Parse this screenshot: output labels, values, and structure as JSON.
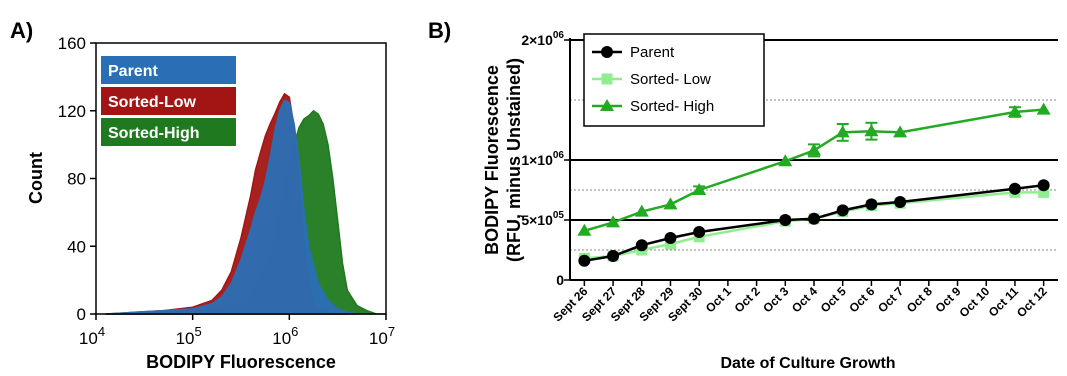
{
  "panel_labels": {
    "a": "A)",
    "b": "B)"
  },
  "chart_data": [
    {
      "type": "area",
      "panel": "A)",
      "xlabel": "BODIPY Fluorescence",
      "ylabel": "Count",
      "x_scale": "log",
      "xlim": [
        10000,
        10000000
      ],
      "ylim": [
        0,
        160
      ],
      "yticks": [
        "0",
        "40",
        "80",
        "120",
        "160"
      ],
      "xticks": [
        {
          "base": "10",
          "exp": "4"
        },
        {
          "base": "10",
          "exp": "5"
        },
        {
          "base": "10",
          "exp": "6"
        },
        {
          "base": "10",
          "exp": "7"
        }
      ],
      "legend_position": "top-left",
      "series": [
        {
          "name": "Sorted-High",
          "color": "#1f7a1f",
          "log_x": [
            4.1,
            4.4,
            4.7,
            5.0,
            5.2,
            5.4,
            5.5,
            5.6,
            5.7,
            5.8,
            5.85,
            5.9,
            5.95,
            6.0,
            6.05,
            6.1,
            6.15,
            6.2,
            6.25,
            6.3,
            6.35,
            6.4,
            6.45,
            6.5,
            6.55,
            6.6,
            6.7,
            6.8,
            6.9,
            7.0
          ],
          "count": [
            0,
            0,
            1,
            2,
            3,
            5,
            8,
            12,
            20,
            32,
            45,
            58,
            72,
            88,
            100,
            110,
            115,
            117,
            120,
            118,
            112,
            100,
            80,
            55,
            30,
            14,
            5,
            2,
            0,
            0
          ]
        },
        {
          "name": "Sorted-Low",
          "color": "#a31515",
          "log_x": [
            4.1,
            4.4,
            4.7,
            5.0,
            5.2,
            5.3,
            5.4,
            5.5,
            5.6,
            5.65,
            5.7,
            5.75,
            5.8,
            5.85,
            5.9,
            5.95,
            6.0,
            6.05,
            6.1,
            6.15,
            6.2,
            6.25,
            6.3,
            6.4,
            6.5,
            6.6
          ],
          "count": [
            0,
            1,
            2,
            4,
            8,
            14,
            25,
            45,
            70,
            85,
            95,
            105,
            112,
            118,
            125,
            130,
            128,
            110,
            80,
            45,
            20,
            8,
            3,
            1,
            0,
            0
          ]
        },
        {
          "name": "Parent",
          "color": "#2a6fb5",
          "log_x": [
            4.1,
            4.4,
            4.7,
            5.0,
            5.2,
            5.3,
            5.4,
            5.5,
            5.6,
            5.65,
            5.7,
            5.75,
            5.8,
            5.85,
            5.9,
            5.95,
            6.0,
            6.05,
            6.1,
            6.15,
            6.2,
            6.3,
            6.4,
            6.5,
            6.6,
            6.7
          ],
          "count": [
            0,
            1,
            2,
            3,
            6,
            10,
            18,
            32,
            50,
            60,
            68,
            78,
            92,
            108,
            120,
            126,
            125,
            112,
            90,
            62,
            40,
            18,
            8,
            3,
            1,
            0
          ]
        }
      ]
    },
    {
      "type": "line",
      "panel": "B)",
      "xlabel": "Date of Culture Growth",
      "ylabel": "BODIPY Fluorescence",
      "ylabel2": "(RFU, minus Unstained)",
      "categories": [
        "Sept 26",
        "Sept 27",
        "Sept 28",
        "Sept 29",
        "Sept 30",
        "Oct 1",
        "Oct 2",
        "Oct 3",
        "Oct 4",
        "Oct 5",
        "Oct 6",
        "Oct 7",
        "Oct 8",
        "Oct 9",
        "Oct 10",
        "Oct 11",
        "Oct 12"
      ],
      "ylim": [
        0,
        2000000
      ],
      "yticks": [
        {
          "value": 0,
          "mant": "0",
          "exp": ""
        },
        {
          "value": 500000,
          "mant": "5×10",
          "exp": "05"
        },
        {
          "value": 1000000,
          "mant": "1×10",
          "exp": "06"
        },
        {
          "value": 2000000,
          "mant": "2×10",
          "exp": "06"
        }
      ],
      "grid": "dotted minor lines at 250000, 750000, 1500000",
      "legend_position": "top-left",
      "series": [
        {
          "name": "Parent",
          "marker": "circle",
          "color": "#000000",
          "x": [
            "Sept 26",
            "Sept 27",
            "Sept 28",
            "Sept 29",
            "Sept 30",
            "Oct 3",
            "Oct 4",
            "Oct 5",
            "Oct 6",
            "Oct 7",
            "Oct 11",
            "Oct 12"
          ],
          "y": [
            160000,
            200000,
            290000,
            350000,
            400000,
            500000,
            510000,
            580000,
            630000,
            650000,
            760000,
            790000
          ]
        },
        {
          "name": "Sorted- Low",
          "marker": "square",
          "color": "#90ee90",
          "x": [
            "Sept 26",
            "Sept 27",
            "Sept 28",
            "Sept 29",
            "Sept 30",
            "Oct 3",
            "Oct 4",
            "Oct 5",
            "Oct 6",
            "Oct 7",
            "Oct 11",
            "Oct 12"
          ],
          "y": [
            180000,
            200000,
            250000,
            300000,
            360000,
            490000,
            510000,
            570000,
            620000,
            640000,
            730000,
            730000
          ]
        },
        {
          "name": "Sorted- High",
          "marker": "triangle",
          "color": "#22aa22",
          "x": [
            "Sept 26",
            "Sept 27",
            "Sept 28",
            "Sept 29",
            "Sept 30",
            "Oct 3",
            "Oct 4",
            "Oct 5",
            "Oct 6",
            "Oct 7",
            "Oct 11",
            "Oct 12"
          ],
          "y": [
            410000,
            480000,
            570000,
            630000,
            750000,
            990000,
            1080000,
            1230000,
            1240000,
            1230000,
            1400000,
            1420000
          ],
          "error": [
            0,
            0,
            0,
            0,
            30000,
            0,
            50000,
            70000,
            70000,
            0,
            40000,
            0
          ]
        }
      ]
    }
  ]
}
